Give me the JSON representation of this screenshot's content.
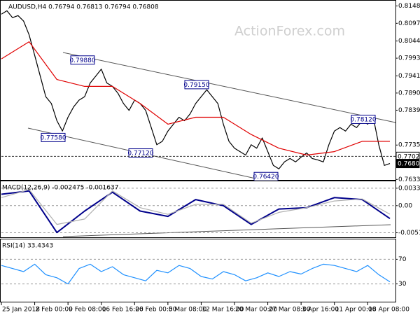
{
  "chart_data": [
    {
      "type": "line",
      "title": "AUDUSD,H4  0.76794 0.76813 0.76794 0.76808",
      "watermark": "ActionForex.com",
      "xlim": [
        0,
        70
      ],
      "ylim": [
        0.763,
        0.816
      ],
      "yticks": [
        0.81485,
        {
          "value": 0.8097,
          "label": "0.80970"
        },
        0.80445,
        0.79935,
        {
          "value": 0.7941,
          "label": "0.79410"
        },
        {
          "value": 0.789,
          "label": "0.78900"
        },
        {
          "value": 0.7839,
          "label": "0.78390"
        },
        0.77355,
        0.76335
      ],
      "price_marks": [
        {
          "value": 0.7702,
          "label": "0.77020"
        },
        0.76808
      ],
      "annotations": [
        {
          "value": 0.7988,
          "label": "0.79880"
        },
        {
          "value": 0.7758,
          "label": "0.77580"
        },
        {
          "value": 0.7712,
          "label": "0.77120"
        },
        {
          "value": 0.7915,
          "label": "0.79150"
        },
        {
          "value": 0.7642,
          "label": "0.76420"
        },
        {
          "value": 0.7812,
          "label": "0.78120"
        }
      ],
      "grid": false,
      "series": [
        {
          "name": "AUDUSD",
          "color": "#000000",
          "x": [
            0,
            1,
            2,
            3,
            4,
            5,
            6,
            7,
            8,
            9,
            10,
            11,
            12,
            13,
            14,
            15,
            16,
            17,
            18,
            19,
            20,
            21,
            22,
            23,
            24,
            25,
            26,
            27,
            28,
            29,
            30,
            31,
            32,
            33,
            34,
            35,
            36,
            37,
            38,
            39,
            40,
            41,
            42,
            43,
            44,
            45,
            46,
            47,
            48,
            49,
            50,
            51,
            52,
            53,
            54,
            55,
            56,
            57,
            58,
            59,
            60,
            61,
            62,
            63,
            64,
            65,
            66,
            67,
            68,
            69,
            70
          ],
          "values": [
            0.8124,
            0.81342,
            0.81138,
            0.81199,
            0.81036,
            0.80628,
            0.80016,
            0.79404,
            0.78792,
            0.78588,
            0.78078,
            0.77772,
            0.7818,
            0.78486,
            0.7869,
            0.78792,
            0.792,
            0.79404,
            0.79608,
            0.792,
            0.79098,
            0.78894,
            0.78588,
            0.78384,
            0.7869,
            0.78588,
            0.78384,
            0.77874,
            0.77364,
            0.77466,
            0.77772,
            0.77976,
            0.7818,
            0.78078,
            0.78282,
            0.78588,
            0.78792,
            0.78996,
            0.78792,
            0.78588,
            0.77976,
            0.77466,
            0.77262,
            0.7716,
            0.77058,
            0.77364,
            0.77262,
            0.77568,
            0.7716,
            0.76752,
            0.7665,
            0.76854,
            0.76956,
            0.76854,
            0.76997,
            0.7712,
            0.76956,
            0.76915,
            0.76854,
            0.77364,
            0.77772,
            0.77874,
            0.77772,
            0.77976,
            0.77874,
            0.78078,
            0.77976,
            0.7818,
            0.77364,
            0.76752,
            0.76808
          ]
        },
        {
          "name": "MA",
          "color": "#e00000",
          "x": [
            0,
            5,
            10,
            15,
            20,
            25,
            30,
            35,
            40,
            45,
            50,
            55,
            60,
            65,
            70
          ],
          "values": [
            0.79914,
            0.80424,
            0.79302,
            0.79098,
            0.79098,
            0.78588,
            0.77976,
            0.7818,
            0.7818,
            0.7767,
            0.77262,
            0.77058,
            0.7716,
            0.77466,
            0.77466
          ]
        }
      ]
    },
    {
      "type": "line",
      "title": "MACD(12,26,9) -0.002475 -0.001637",
      "xlim": [
        0,
        70
      ],
      "ylim": [
        -0.0062,
        0.0044
      ],
      "yticks": [
        0.003345,
        {
          "value": 0,
          "label": "0.00"
        },
        -0.005197
      ],
      "grid": true,
      "series": [
        {
          "name": "MACD",
          "color": "#00008b",
          "x": [
            0,
            5,
            10,
            15,
            20,
            25,
            30,
            35,
            40,
            45,
            50,
            55,
            60,
            65,
            70
          ],
          "values": [
            0.00219,
            0.00283,
            -0.00515,
            -0.00103,
            0.00257,
            -0.00103,
            -0.00206,
            0.00116,
            0,
            -0.0036,
            -0.00064,
            -0.00039,
            0.00154,
            0.00116,
            -0.002475
          ]
        },
        {
          "name": "Signal",
          "color": "#b0b0b0",
          "x": [
            0,
            5,
            10,
            15,
            20,
            25,
            30,
            35,
            40,
            45,
            50,
            55,
            60,
            65,
            70
          ],
          "values": [
            0.00154,
            0.00309,
            -0.0036,
            -0.00257,
            0.00283,
            -0.00039,
            -0.00167,
            0.00026,
            0.00026,
            -0.00335,
            -0.00129,
            -0.00039,
            0.0009,
            0.00129,
            -0.001637
          ]
        }
      ]
    },
    {
      "type": "line",
      "title": "RSI(14) 33.4343",
      "xlim": [
        0,
        70
      ],
      "ylim": [
        0,
        100
      ],
      "yticks": [
        70,
        30
      ],
      "grid": true,
      "xticks": [
        {
          "value": 0,
          "label": "25 Jan 2018"
        },
        {
          "value": 6,
          "label": "2 Feb 00:00"
        },
        {
          "value": 12,
          "label": "9 Feb 08:00"
        },
        {
          "value": 18,
          "label": "16 Feb 16:00"
        },
        {
          "value": 24,
          "label": "26 Feb 00:00"
        },
        {
          "value": 30,
          "label": "5 Mar 08:00"
        },
        {
          "value": 36,
          "label": "12 Mar 16:00"
        },
        {
          "value": 42,
          "label": "20 Mar 00:00"
        },
        {
          "value": 48,
          "label": "27 Mar 08:00"
        },
        {
          "value": 54,
          "label": "3 Apr 16:00"
        },
        {
          "value": 60,
          "label": "11 Apr 00:00"
        },
        {
          "value": 66,
          "label": "18 Apr 08:00"
        }
      ],
      "series": [
        {
          "name": "RSI",
          "color": "#1e90ff",
          "x": [
            0,
            2,
            4,
            6,
            8,
            10,
            12,
            14,
            16,
            18,
            20,
            22,
            24,
            26,
            28,
            30,
            32,
            34,
            36,
            38,
            40,
            42,
            44,
            46,
            48,
            50,
            52,
            54,
            56,
            58,
            60,
            62,
            64,
            66,
            68,
            70
          ],
          "values": [
            60,
            55,
            50,
            62,
            45,
            40,
            30,
            55,
            62,
            50,
            58,
            45,
            40,
            35,
            52,
            48,
            60,
            55,
            42,
            38,
            50,
            45,
            35,
            40,
            48,
            42,
            50,
            46,
            55,
            62,
            60,
            55,
            50,
            60,
            45,
            33.4343
          ]
        }
      ]
    }
  ]
}
